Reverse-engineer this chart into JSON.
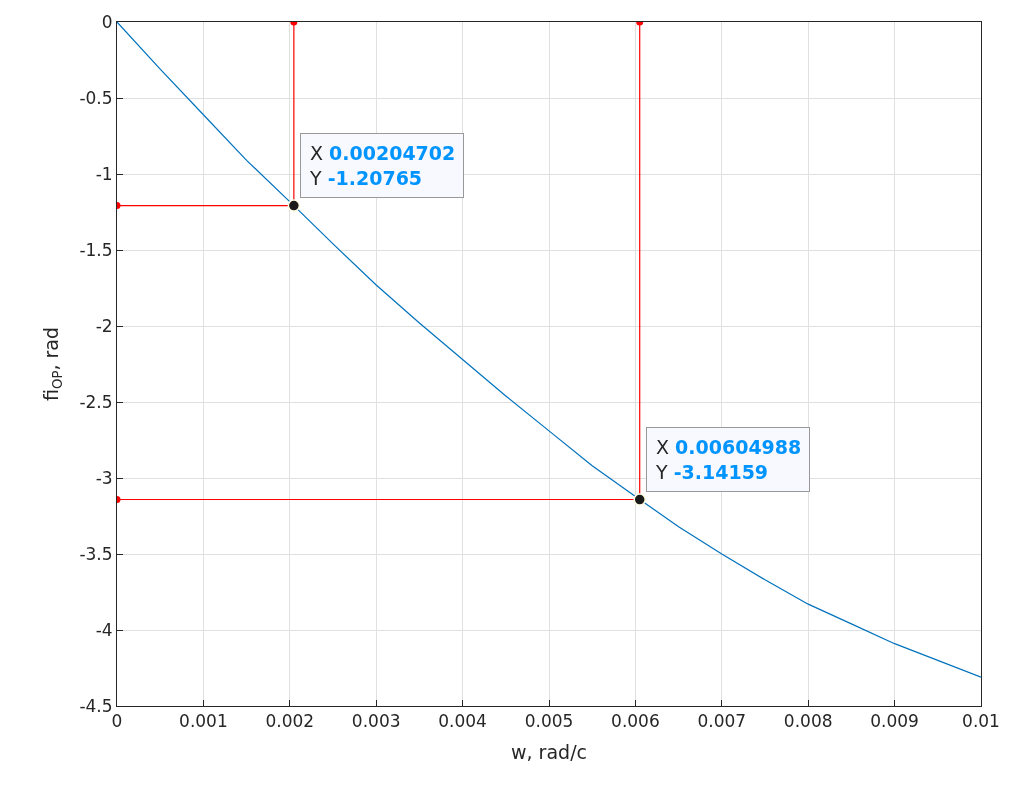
{
  "chart_data": {
    "type": "line",
    "xlabel": "w, rad/c",
    "ylabel": "fi$_{OP}$, rad",
    "xlim": [
      0,
      0.01
    ],
    "xticks": [
      0,
      0.001,
      0.002,
      0.003,
      0.004,
      0.005,
      0.006,
      0.007,
      0.008,
      0.009,
      0.01
    ],
    "ylim": [
      -4.5,
      0
    ],
    "yticks": [
      -4.5,
      -4,
      -3.5,
      -3,
      -2.5,
      -2,
      -1.5,
      -1,
      -0.5,
      0
    ],
    "grid": true,
    "series": [
      {
        "color": "#0072bd",
        "marker": "none",
        "x": [
          0,
          0.0005,
          0.001,
          0.0015,
          0.00204702,
          0.0025,
          0.003,
          0.0035,
          0.004,
          0.0045,
          0.005,
          0.0055,
          0.00604988,
          0.0065,
          0.007,
          0.0075,
          0.008,
          0.0085,
          0.009,
          0.0095,
          0.01
        ],
        "values": [
          0,
          -0.31,
          -0.61,
          -0.91,
          -1.20765,
          -1.46,
          -1.73,
          -1.98,
          -2.22,
          -2.46,
          -2.69,
          -2.92,
          -3.14159,
          -3.32,
          -3.5,
          -3.67,
          -3.83,
          -3.96,
          -4.09,
          -4.2,
          -4.31
        ]
      },
      {
        "color": "#ff0000",
        "marker": "circle",
        "x": [
          0.00204702,
          0.00204702,
          0
        ],
        "values": [
          0,
          -1.20765,
          -1.20765
        ]
      },
      {
        "color": "#ff0000",
        "marker": "circle",
        "x": [
          0.00604988,
          0.00604988,
          0
        ],
        "values": [
          0,
          -3.14159,
          -3.14159
        ]
      },
      {
        "type": "scatter",
        "color": "#1a1a1a",
        "marker": "circle",
        "x": [
          0.00204702,
          0.00604988
        ],
        "values": [
          -1.20765,
          -3.14159
        ]
      }
    ],
    "annotations": [
      {
        "text": "X 0.00204702\nY -1.20765",
        "x": 0.00204702,
        "y": -1.20765
      },
      {
        "text": "X 0.00604988\nY -3.14159",
        "x": 0.00604988,
        "y": -3.14159
      }
    ]
  }
}
